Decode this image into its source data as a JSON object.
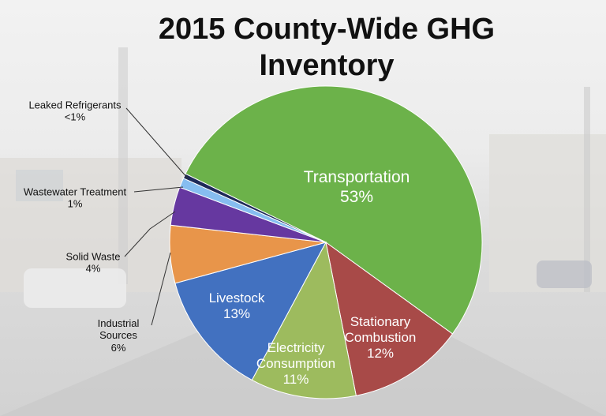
{
  "chart_data": {
    "type": "pie",
    "title": "2015 County-Wide GHG Inventory",
    "categories": [
      "Transportation",
      "Stationary Combustion",
      "Electricity Consumption",
      "Livestock",
      "Industrial Sources",
      "Solid Waste",
      "Wastewater Treatment",
      "Leaked Refrigerants"
    ],
    "values": [
      53,
      12,
      11,
      13,
      6,
      4,
      1,
      0.5
    ],
    "value_labels": [
      "53%",
      "12%",
      "11%",
      "13%",
      "6%",
      "4%",
      "1%",
      "<1%"
    ],
    "colors": [
      "#6cb24a",
      "#a84a48",
      "#9dbb5e",
      "#4271c0",
      "#e8954a",
      "#6638a0",
      "#86bdf0",
      "#1e2a58"
    ]
  }
}
